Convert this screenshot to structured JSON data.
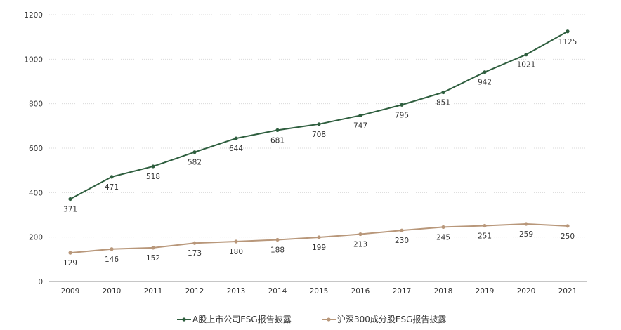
{
  "chart_data": {
    "type": "line",
    "title": "",
    "xlabel": "",
    "ylabel": "",
    "categories": [
      "2009",
      "2010",
      "2011",
      "2012",
      "2013",
      "2014",
      "2015",
      "2016",
      "2017",
      "2018",
      "2019",
      "2020",
      "2021"
    ],
    "ylim": [
      0,
      1200
    ],
    "yticks": [
      0,
      200,
      400,
      600,
      800,
      1000,
      1200
    ],
    "grid": true,
    "legend_position": "bottom-center",
    "series": [
      {
        "name": "A股上市公司ESG报告披露",
        "color": "#2e5e3e",
        "values": [
          371,
          471,
          518,
          582,
          644,
          681,
          708,
          747,
          795,
          851,
          942,
          1021,
          1125
        ],
        "label_position": "below"
      },
      {
        "name": "沪深300成分股ESG报告披露",
        "color": "#b8977a",
        "values": [
          129,
          146,
          152,
          173,
          180,
          188,
          199,
          213,
          230,
          245,
          251,
          259,
          250
        ],
        "label_position": "below"
      }
    ]
  }
}
